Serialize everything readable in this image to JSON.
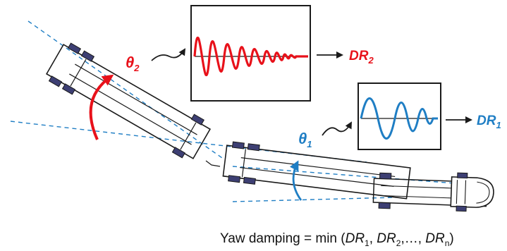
{
  "colors": {
    "red": "#e8111a",
    "blue": "#1f7ec4",
    "dark": "#1a1a1a",
    "tire": "#3d3f73"
  },
  "theta2": {
    "symbol": "θ",
    "sub": "2"
  },
  "theta1": {
    "symbol": "θ",
    "sub": "1"
  },
  "dr2": {
    "main": "DR",
    "sub": "2"
  },
  "dr1": {
    "main": "DR",
    "sub": "1"
  },
  "formula": {
    "prefix": "Yaw damping = min (",
    "dr": "DR",
    "sub1": "1",
    "sep1": ", ",
    "sub2": "2",
    "sep2": ",…, ",
    "subn": "n",
    "suffix": ")"
  }
}
